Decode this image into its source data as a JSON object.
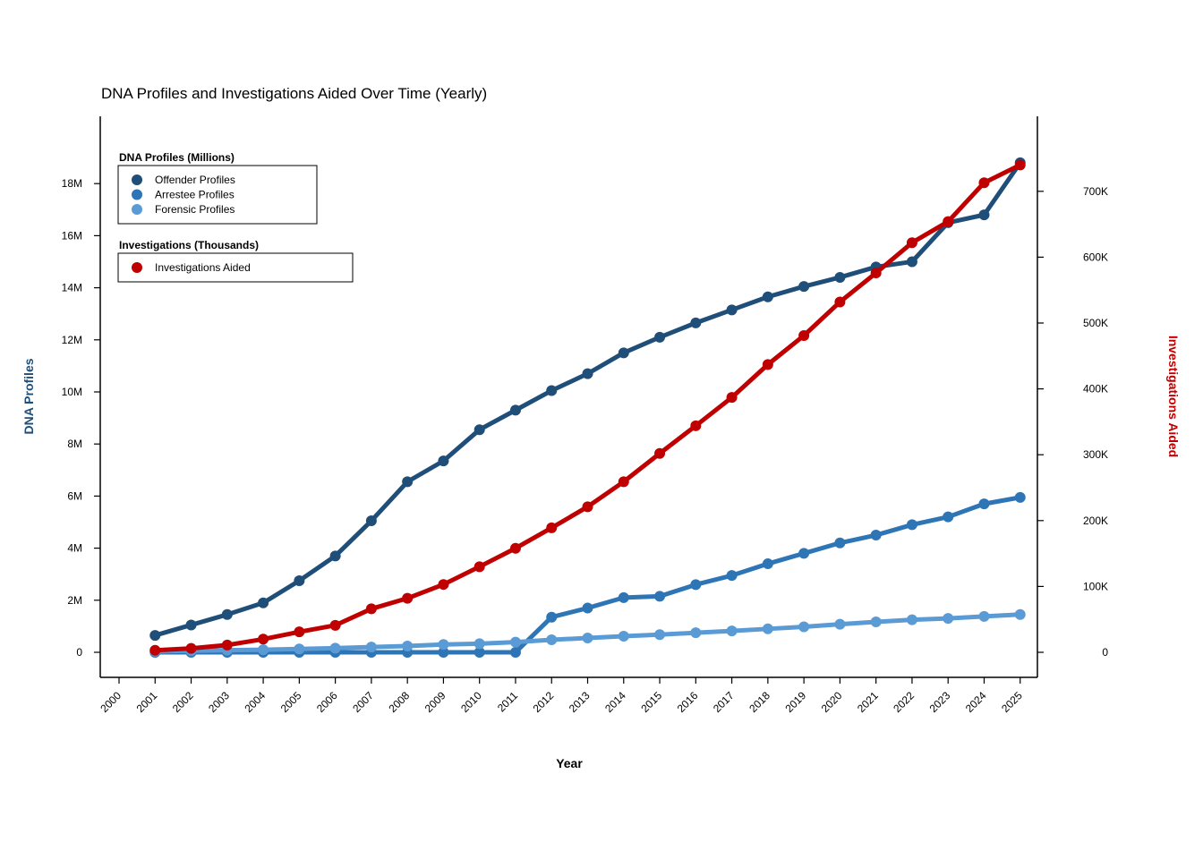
{
  "chart_data": {
    "type": "line",
    "title": "DNA Profiles and Investigations Aided Over Time (Yearly)",
    "xlabel": "Year",
    "ylabel_left": "DNA Profiles",
    "ylabel_right": "Investigations Aided",
    "x_ticks": [
      "2000",
      "2001",
      "2002",
      "2003",
      "2004",
      "2005",
      "2006",
      "2007",
      "2008",
      "2009",
      "2010",
      "2011",
      "2012",
      "2013",
      "2014",
      "2015",
      "2016",
      "2017",
      "2018",
      "2019",
      "2020",
      "2021",
      "2022",
      "2023",
      "2024",
      "2025"
    ],
    "x": [
      2001,
      2002,
      2003,
      2004,
      2005,
      2006,
      2007,
      2008,
      2009,
      2010,
      2011,
      2012,
      2013,
      2014,
      2015,
      2016,
      2017,
      2018,
      2019,
      2020,
      2021,
      2022,
      2023,
      2024,
      2025
    ],
    "xlim": [
      2000,
      2025
    ],
    "ylim_left": [
      0,
      18000000
    ],
    "yticks_left": [
      0,
      2000000,
      4000000,
      6000000,
      8000000,
      10000000,
      12000000,
      14000000,
      16000000,
      18000000
    ],
    "yticklabels_left": [
      "0",
      "2M",
      "4M",
      "6M",
      "8M",
      "10M",
      "12M",
      "14M",
      "16M",
      "18M"
    ],
    "ylim_right": [
      0,
      700000
    ],
    "yticks_right": [
      0,
      100000,
      200000,
      300000,
      400000,
      500000,
      600000,
      700000
    ],
    "yticklabels_right": [
      "0",
      "100K",
      "200K",
      "300K",
      "400K",
      "500K",
      "600K",
      "700K"
    ],
    "series_left": [
      {
        "name": "Offender Profiles",
        "color": "#1f4e79",
        "values": [
          650000,
          1050000,
          1450000,
          1900000,
          2750000,
          3700000,
          5050000,
          6550000,
          7350000,
          8550000,
          9300000,
          10050000,
          10700000,
          11500000,
          12100000,
          12650000,
          13150000,
          13650000,
          14050000,
          14400000,
          14800000,
          15000000,
          16500000,
          16800000,
          18800000
        ]
      },
      {
        "name": "Arrestee Profiles",
        "color": "#2e75b6",
        "values": [
          0,
          0,
          0,
          0,
          0,
          0,
          0,
          0,
          0,
          0,
          0,
          1350000,
          1700000,
          2100000,
          2150000,
          2600000,
          2950000,
          3400000,
          3800000,
          4200000,
          4500000,
          4900000,
          5200000,
          5700000,
          5950000
        ]
      },
      {
        "name": "Forensic Profiles",
        "color": "#5b9bd5",
        "values": [
          40000,
          60000,
          80000,
          100000,
          130000,
          160000,
          200000,
          240000,
          300000,
          330000,
          390000,
          480000,
          550000,
          620000,
          680000,
          750000,
          820000,
          900000,
          980000,
          1080000,
          1170000,
          1250000,
          1300000,
          1380000,
          1450000
        ]
      }
    ],
    "series_right": [
      {
        "name": "Investigations Aided",
        "color": "#c00000",
        "values": [
          3000,
          6000,
          11000,
          20000,
          31000,
          41000,
          66000,
          82000,
          103000,
          130000,
          158000,
          189000,
          221000,
          259000,
          302000,
          344000,
          387000,
          437000,
          481000,
          532000,
          576000,
          622000,
          654000,
          713000,
          740000
        ]
      }
    ],
    "legend_left_title": "DNA Profiles (Millions)",
    "legend_right_title": "Investigations (Thousands)",
    "legend_placement": "top-left",
    "grid": false
  }
}
